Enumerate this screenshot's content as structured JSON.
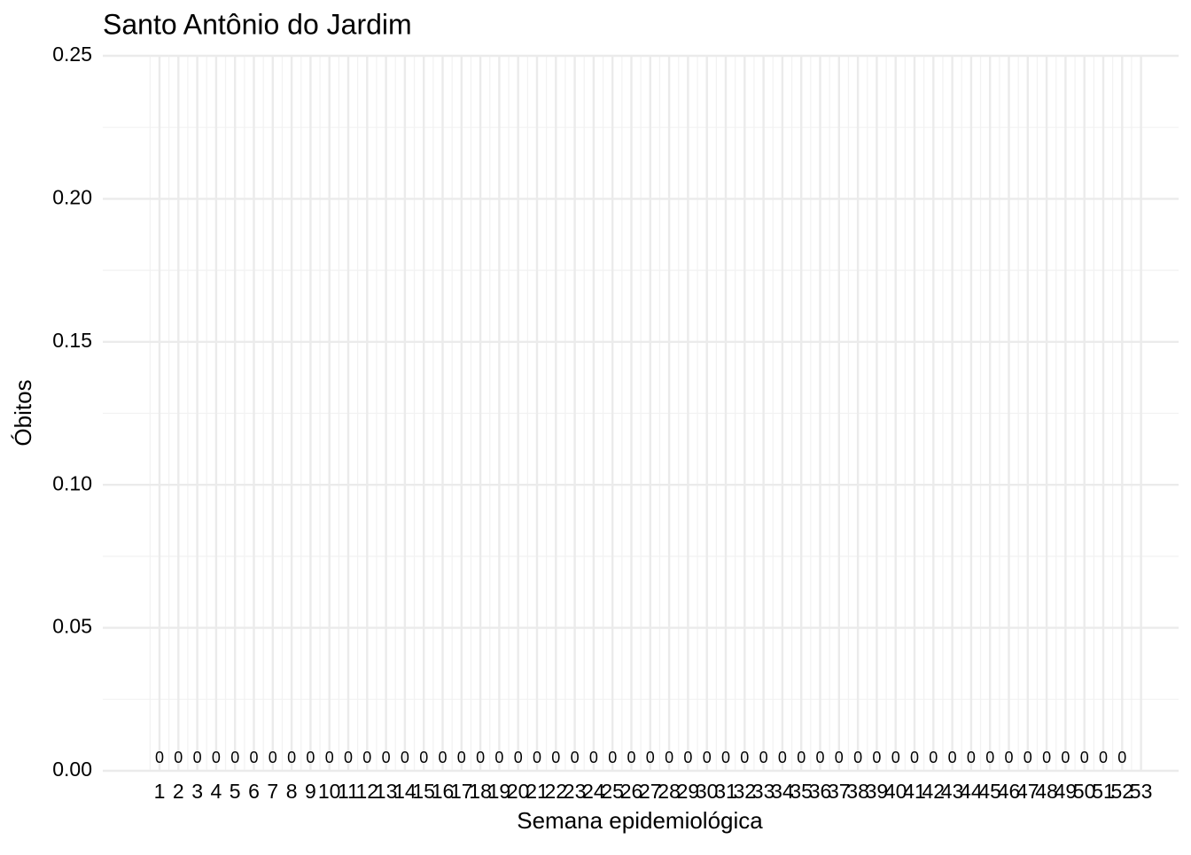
{
  "chart_data": {
    "type": "bar",
    "title": "Santo Antônio do Jardim",
    "x_label": "Semana epidemiológica",
    "y_label": "Óbitos",
    "categories": [
      "1",
      "2",
      "3",
      "4",
      "5",
      "6",
      "7",
      "8",
      "9",
      "10",
      "11",
      "12",
      "13",
      "14",
      "15",
      "16",
      "17",
      "18",
      "19",
      "20",
      "21",
      "22",
      "23",
      "24",
      "25",
      "26",
      "27",
      "28",
      "29",
      "30",
      "31",
      "32",
      "33",
      "34",
      "35",
      "36",
      "37",
      "38",
      "39",
      "40",
      "41",
      "42",
      "43",
      "44",
      "45",
      "46",
      "47",
      "48",
      "49",
      "50",
      "51",
      "52",
      "53"
    ],
    "values": [
      0,
      0,
      0,
      0,
      0,
      0,
      0,
      0,
      0,
      0,
      0,
      0,
      0,
      0,
      0,
      0,
      0,
      0,
      0,
      0,
      0,
      0,
      0,
      0,
      0,
      0,
      0,
      0,
      0,
      0,
      0,
      0,
      0,
      0,
      0,
      0,
      0,
      0,
      0,
      0,
      0,
      0,
      0,
      0,
      0,
      0,
      0,
      0,
      0,
      0,
      0,
      0,
      null
    ],
    "color": "#000000",
    "ylim": [
      0,
      0.25
    ],
    "yticks": [
      {
        "value": 0,
        "label": "0.00"
      },
      {
        "value": 0.05,
        "label": "0.05"
      },
      {
        "value": 0.1,
        "label": "0.10"
      },
      {
        "value": 0.15,
        "label": "0.15"
      },
      {
        "value": 0.2,
        "label": "0.20"
      },
      {
        "value": 0.25,
        "label": "0.25"
      }
    ],
    "grid": true
  }
}
